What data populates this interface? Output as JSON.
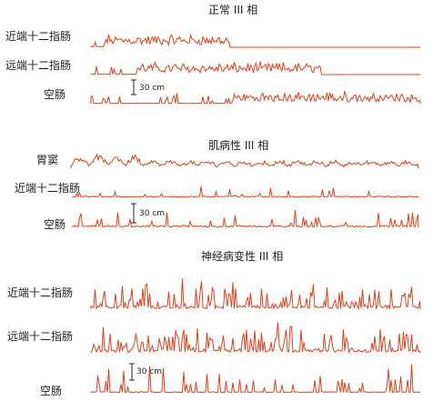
{
  "panels": [
    {
      "title": "正常 III 相",
      "traces": [
        {
          "label": "近端十二指肠",
          "pattern": "burst_start"
        },
        {
          "label": "远端十二指肠",
          "pattern": "burst_mid"
        },
        {
          "label": "空肠",
          "pattern": "burst_late"
        }
      ],
      "scale": "30 cm"
    },
    {
      "title": "肌病性 III 相",
      "traces": [
        {
          "label": "胃窦",
          "pattern": "wavy_low"
        },
        {
          "label": "近端十二指肠",
          "pattern": "sparse_low"
        },
        {
          "label": "空肠",
          "pattern": "sparse_mixed"
        }
      ],
      "scale": "30 cm"
    },
    {
      "title": "神经病变性 III 相",
      "traces": [
        {
          "label": "近端十二指肠",
          "pattern": "chaotic_high"
        },
        {
          "label": "远端十二指肠",
          "pattern": "chaotic_high"
        },
        {
          "label": "空肠",
          "pattern": "sparse_spikes"
        }
      ],
      "scale": "30 cm"
    }
  ],
  "colors": {
    "trace": "#e0401c",
    "text": "#222222"
  }
}
